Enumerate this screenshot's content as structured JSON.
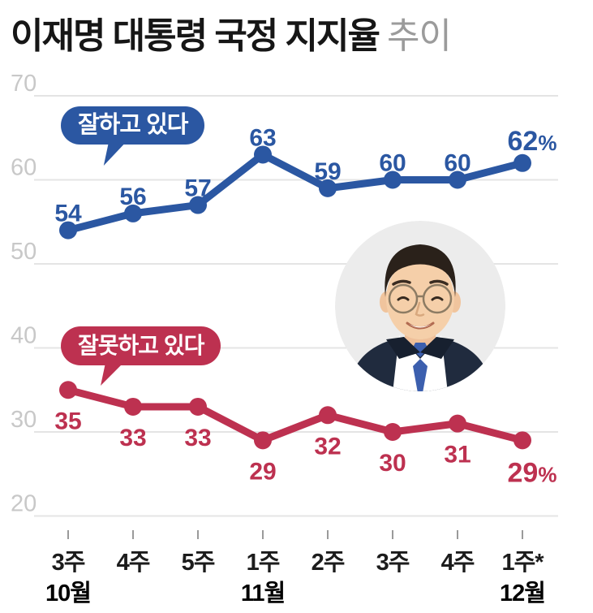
{
  "title": {
    "main": "이재명 대통령 국정 지지율",
    "suffix": "추이"
  },
  "colors": {
    "positive": "#2b57a2",
    "negative": "#bd3150",
    "grid": "#e4e4e4",
    "y_label": "#c8c8c8",
    "tick": "#9a9a9a",
    "week_label": "#1c1c1c",
    "month_label": "#000000",
    "bubble_text": "#ffffff",
    "title_main": "#161616",
    "title_suffix": "#9b9b9b"
  },
  "chart_data": {
    "type": "line",
    "title": "이재명 대통령 국정 지지율 추이",
    "x_axis": [
      {
        "week": "3주",
        "month": "10월"
      },
      {
        "week": "4주",
        "month": ""
      },
      {
        "week": "5주",
        "month": ""
      },
      {
        "week": "1주",
        "month": "11월"
      },
      {
        "week": "2주",
        "month": ""
      },
      {
        "week": "3주",
        "month": ""
      },
      {
        "week": "4주",
        "month": ""
      },
      {
        "week": "1주*",
        "month": "12월"
      }
    ],
    "series": [
      {
        "name": "잘하고 있다",
        "values": [
          54,
          56,
          57,
          63,
          59,
          60,
          60,
          62
        ],
        "point_labels": [
          "54",
          "56",
          "57",
          "63",
          "59",
          "60",
          "60",
          "62%"
        ],
        "color_key": "positive",
        "label_position": "above"
      },
      {
        "name": "잘못하고 있다",
        "values": [
          35,
          33,
          33,
          29,
          32,
          30,
          31,
          29
        ],
        "point_labels": [
          "35",
          "33",
          "33",
          "29",
          "32",
          "30",
          "31",
          "29%"
        ],
        "color_key": "negative",
        "label_position": "below"
      }
    ],
    "y_gridlines": [
      70,
      60,
      50,
      40,
      30,
      20
    ],
    "ylim": [
      20,
      70
    ],
    "unit": "%",
    "grid": "horizontal-only",
    "legend_position": "speech-bubbles-inline"
  }
}
